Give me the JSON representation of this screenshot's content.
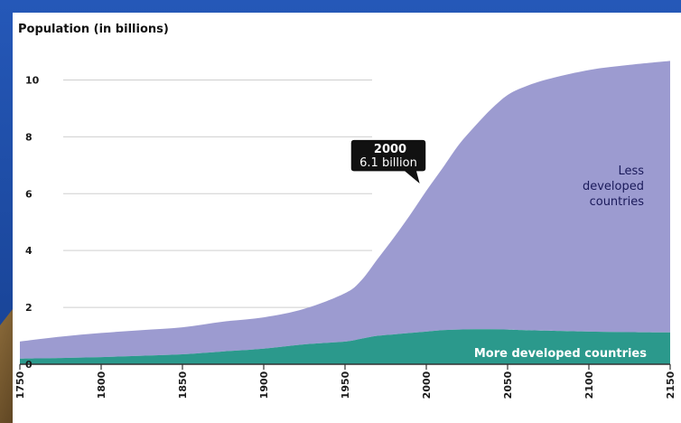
{
  "colors": {
    "slide_background": "#1f4fa8",
    "plot_background": "#ffffff",
    "less_developed": "#9c9bd0",
    "more_developed": "#2b998c",
    "callout_background": "#111111",
    "callout_text": "#ffffff"
  },
  "chart_data": {
    "type": "area",
    "stacked": true,
    "title": "Population (in billions)",
    "xlabel": "",
    "ylabel": "",
    "x_ticks": [
      "1750",
      "1800",
      "1850",
      "1900",
      "1950",
      "2000",
      "2050",
      "2100",
      "2150"
    ],
    "y_ticks": [
      "0",
      "2",
      "4",
      "6",
      "8",
      "10"
    ],
    "xlim": [
      1750,
      2150
    ],
    "ylim": [
      0,
      11
    ],
    "grid": "horizontal",
    "x": [
      1750,
      1775,
      1800,
      1825,
      1850,
      1875,
      1900,
      1925,
      1950,
      1960,
      1970,
      1980,
      1990,
      2000,
      2010,
      2020,
      2030,
      2040,
      2050,
      2060,
      2075,
      2100,
      2125,
      2150
    ],
    "series": [
      {
        "name": "More developed countries",
        "values": [
          0.2,
          0.22,
          0.25,
          0.3,
          0.35,
          0.45,
          0.55,
          0.7,
          0.8,
          0.9,
          1.0,
          1.05,
          1.1,
          1.15,
          1.2,
          1.22,
          1.23,
          1.23,
          1.22,
          1.2,
          1.18,
          1.15,
          1.13,
          1.12
        ]
      },
      {
        "name": "Less developed countries",
        "values": [
          0.6,
          0.75,
          0.85,
          0.9,
          0.95,
          1.05,
          1.1,
          1.25,
          1.7,
          2.05,
          2.7,
          3.4,
          4.15,
          4.95,
          5.7,
          6.5,
          7.15,
          7.75,
          8.25,
          8.55,
          8.85,
          9.2,
          9.4,
          9.55
        ]
      }
    ],
    "callout": {
      "year_label": "2000",
      "value_label": "6.1 billion",
      "x": 2000,
      "y": 6.1
    },
    "area_labels": {
      "less_developed": [
        "Less",
        "developed",
        "countries"
      ],
      "more_developed": "More developed countries"
    }
  }
}
